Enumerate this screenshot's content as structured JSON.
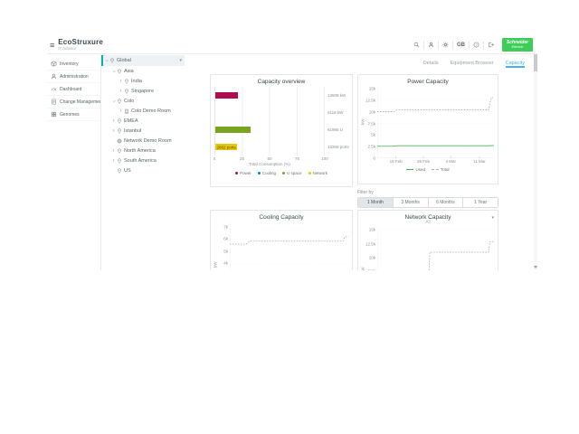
{
  "topbar": {
    "logo": {
      "title": "EcoStruxure",
      "subtitle": "IT Advisor"
    },
    "actions": [
      {
        "name": "search",
        "icon": "search-icon"
      },
      {
        "name": "user",
        "icon": "user-icon"
      },
      {
        "name": "settings",
        "icon": "gear-icon"
      },
      {
        "name": "language",
        "icon": null,
        "label": "GB"
      },
      {
        "name": "help",
        "icon": "help-icon"
      },
      {
        "name": "logout",
        "icon": "logout-icon"
      }
    ],
    "brand": {
      "line1": "Schneider",
      "line2": "Electric",
      "color": "#3dcd58"
    }
  },
  "sidebar": {
    "items": [
      {
        "label": "Inventory",
        "icon": "inventory-icon"
      },
      {
        "label": "Administration",
        "icon": "administration-icon"
      },
      {
        "label": "Dashboard",
        "icon": "dashboard-icon"
      },
      {
        "label": "Change Management",
        "icon": "change-management-icon"
      },
      {
        "label": "Genomes",
        "icon": "genomes-icon"
      }
    ]
  },
  "tree": {
    "items": [
      {
        "label": "Global",
        "level": 0,
        "expander": "down",
        "icon": "site",
        "selected": true,
        "caret": true
      },
      {
        "label": "Asia",
        "level": 1,
        "expander": "down",
        "icon": "site"
      },
      {
        "label": "India",
        "level": 2,
        "expander": "right",
        "icon": "site"
      },
      {
        "label": "Singapore",
        "level": 2,
        "expander": "right",
        "icon": "site"
      },
      {
        "label": "Colo",
        "level": 1,
        "expander": "down",
        "icon": "site"
      },
      {
        "label": "Colo Demo Room",
        "level": 2,
        "expander": "right",
        "icon": "room"
      },
      {
        "label": "EMEA",
        "level": 1,
        "expander": "right",
        "icon": "site"
      },
      {
        "label": "Istanbul",
        "level": 1,
        "expander": "right",
        "icon": "site"
      },
      {
        "label": "Network Demo Room",
        "level": 1,
        "expander": null,
        "icon": "globe"
      },
      {
        "label": "North America",
        "level": 1,
        "expander": "right",
        "icon": "site"
      },
      {
        "label": "South America",
        "level": 1,
        "expander": "right",
        "icon": "site"
      },
      {
        "label": "US",
        "level": 1,
        "expander": null,
        "icon": "site"
      }
    ]
  },
  "tabs": {
    "items": [
      {
        "label": "Details",
        "active": false
      },
      {
        "label": "Equipment Browser",
        "active": false
      },
      {
        "label": "Capacity",
        "active": true
      }
    ],
    "active_color": "#42b4e6"
  },
  "filter": {
    "label": "Filter by",
    "options": [
      "1 Month",
      "3 Months",
      "6 Months",
      "1 Year"
    ],
    "active_index": 0
  },
  "chart_data": [
    {
      "id": "capacity_overview",
      "type": "bar",
      "title": "Capacity overview",
      "orientation": "horizontal",
      "categories": [
        "Power",
        "Cooling",
        "U space",
        "Network"
      ],
      "values_pct": [
        21,
        0,
        32,
        20
      ],
      "value_labels": [
        "13808 kW",
        "6118 kW",
        "61965 U",
        "13308 ports"
      ],
      "bar_labels": [
        null,
        null,
        null,
        "2662 ports"
      ],
      "colors": [
        "#b00d50",
        "#0087cd",
        "#7aa41d",
        "#e9c609"
      ],
      "xlabel": "Total Consumption (%)",
      "xlim": [
        0,
        100
      ],
      "xticks": [
        0,
        25,
        50,
        75,
        100
      ],
      "legend": [
        "Power",
        "Cooling",
        "U space",
        "Network"
      ]
    },
    {
      "id": "power_capacity",
      "type": "line",
      "title": "Power Capacity",
      "ylabel": "kW",
      "ylim": [
        0,
        15600
      ],
      "yticks": [
        {
          "v": 15000,
          "label": "15k"
        },
        {
          "v": 12500,
          "label": "12.5k"
        },
        {
          "v": 10000,
          "label": "10k"
        },
        {
          "v": 7500,
          "label": "7.5k"
        },
        {
          "v": 5000,
          "label": "5k"
        },
        {
          "v": 2500,
          "label": "2.5k"
        },
        {
          "v": 0,
          "label": "0"
        }
      ],
      "xticks": [
        {
          "pos": 0.16,
          "label": "19 Feb"
        },
        {
          "pos": 0.395,
          "label": "26 Feb"
        },
        {
          "pos": 0.63,
          "label": "4 Mar"
        },
        {
          "pos": 0.875,
          "label": "11 Mar"
        }
      ],
      "series": [
        {
          "name": "Used",
          "color": "#4cae4f",
          "dash": false,
          "points": [
            [
              0,
              2580
            ],
            [
              0.14,
              2580
            ],
            [
              0.17,
              2690
            ],
            [
              0.95,
              2690
            ],
            [
              1,
              2740
            ]
          ]
        },
        {
          "name": "Total",
          "color": "#a9aeb3",
          "dash": true,
          "points": [
            [
              0,
              10050
            ],
            [
              0.13,
              10050
            ],
            [
              0.15,
              10150
            ],
            [
              0.17,
              10420
            ],
            [
              0.955,
              10420
            ],
            [
              0.975,
              13050
            ],
            [
              1,
              13100
            ]
          ]
        }
      ],
      "legend": [
        {
          "label": "Used",
          "color": "#4cae4f",
          "dash": false
        },
        {
          "label": "Total",
          "color": "#a9aeb3",
          "dash": true
        }
      ]
    },
    {
      "id": "cooling_capacity",
      "type": "line",
      "title": "Cooling Capacity",
      "ylabel": "kW",
      "ylim": [
        400,
        7400
      ],
      "yticks": [
        {
          "v": 7000,
          "label": "7k"
        },
        {
          "v": 6000,
          "label": "6k"
        },
        {
          "v": 5000,
          "label": "5k"
        },
        {
          "v": 4000,
          "label": "4k"
        }
      ],
      "series": [
        {
          "name": "Total",
          "color": "#a9aeb3",
          "dash": true,
          "points": [
            [
              0,
              5560
            ],
            [
              0.14,
              5560
            ],
            [
              0.17,
              5800
            ],
            [
              0.955,
              5800
            ],
            [
              0.97,
              6150
            ],
            [
              1,
              6160
            ]
          ]
        }
      ]
    },
    {
      "id": "network_capacity",
      "type": "line",
      "title": "Network Capacity",
      "subtitle": "All",
      "ylabel": "kW",
      "ylim": [
        0,
        15600
      ],
      "yticks": [
        {
          "v": 15000,
          "label": "15k"
        },
        {
          "v": 12500,
          "label": "12.5k"
        },
        {
          "v": 10000,
          "label": "10k"
        },
        {
          "v": 7500,
          "label": "7.5k"
        }
      ],
      "series": [
        {
          "name": "Total",
          "color": "#a9aeb3",
          "dash": true,
          "points": [
            [
              0,
              600
            ],
            [
              0.43,
              600
            ],
            [
              0.45,
              11000
            ],
            [
              0.955,
              11000
            ],
            [
              0.965,
              12900
            ],
            [
              1,
              12950
            ]
          ]
        }
      ]
    }
  ]
}
